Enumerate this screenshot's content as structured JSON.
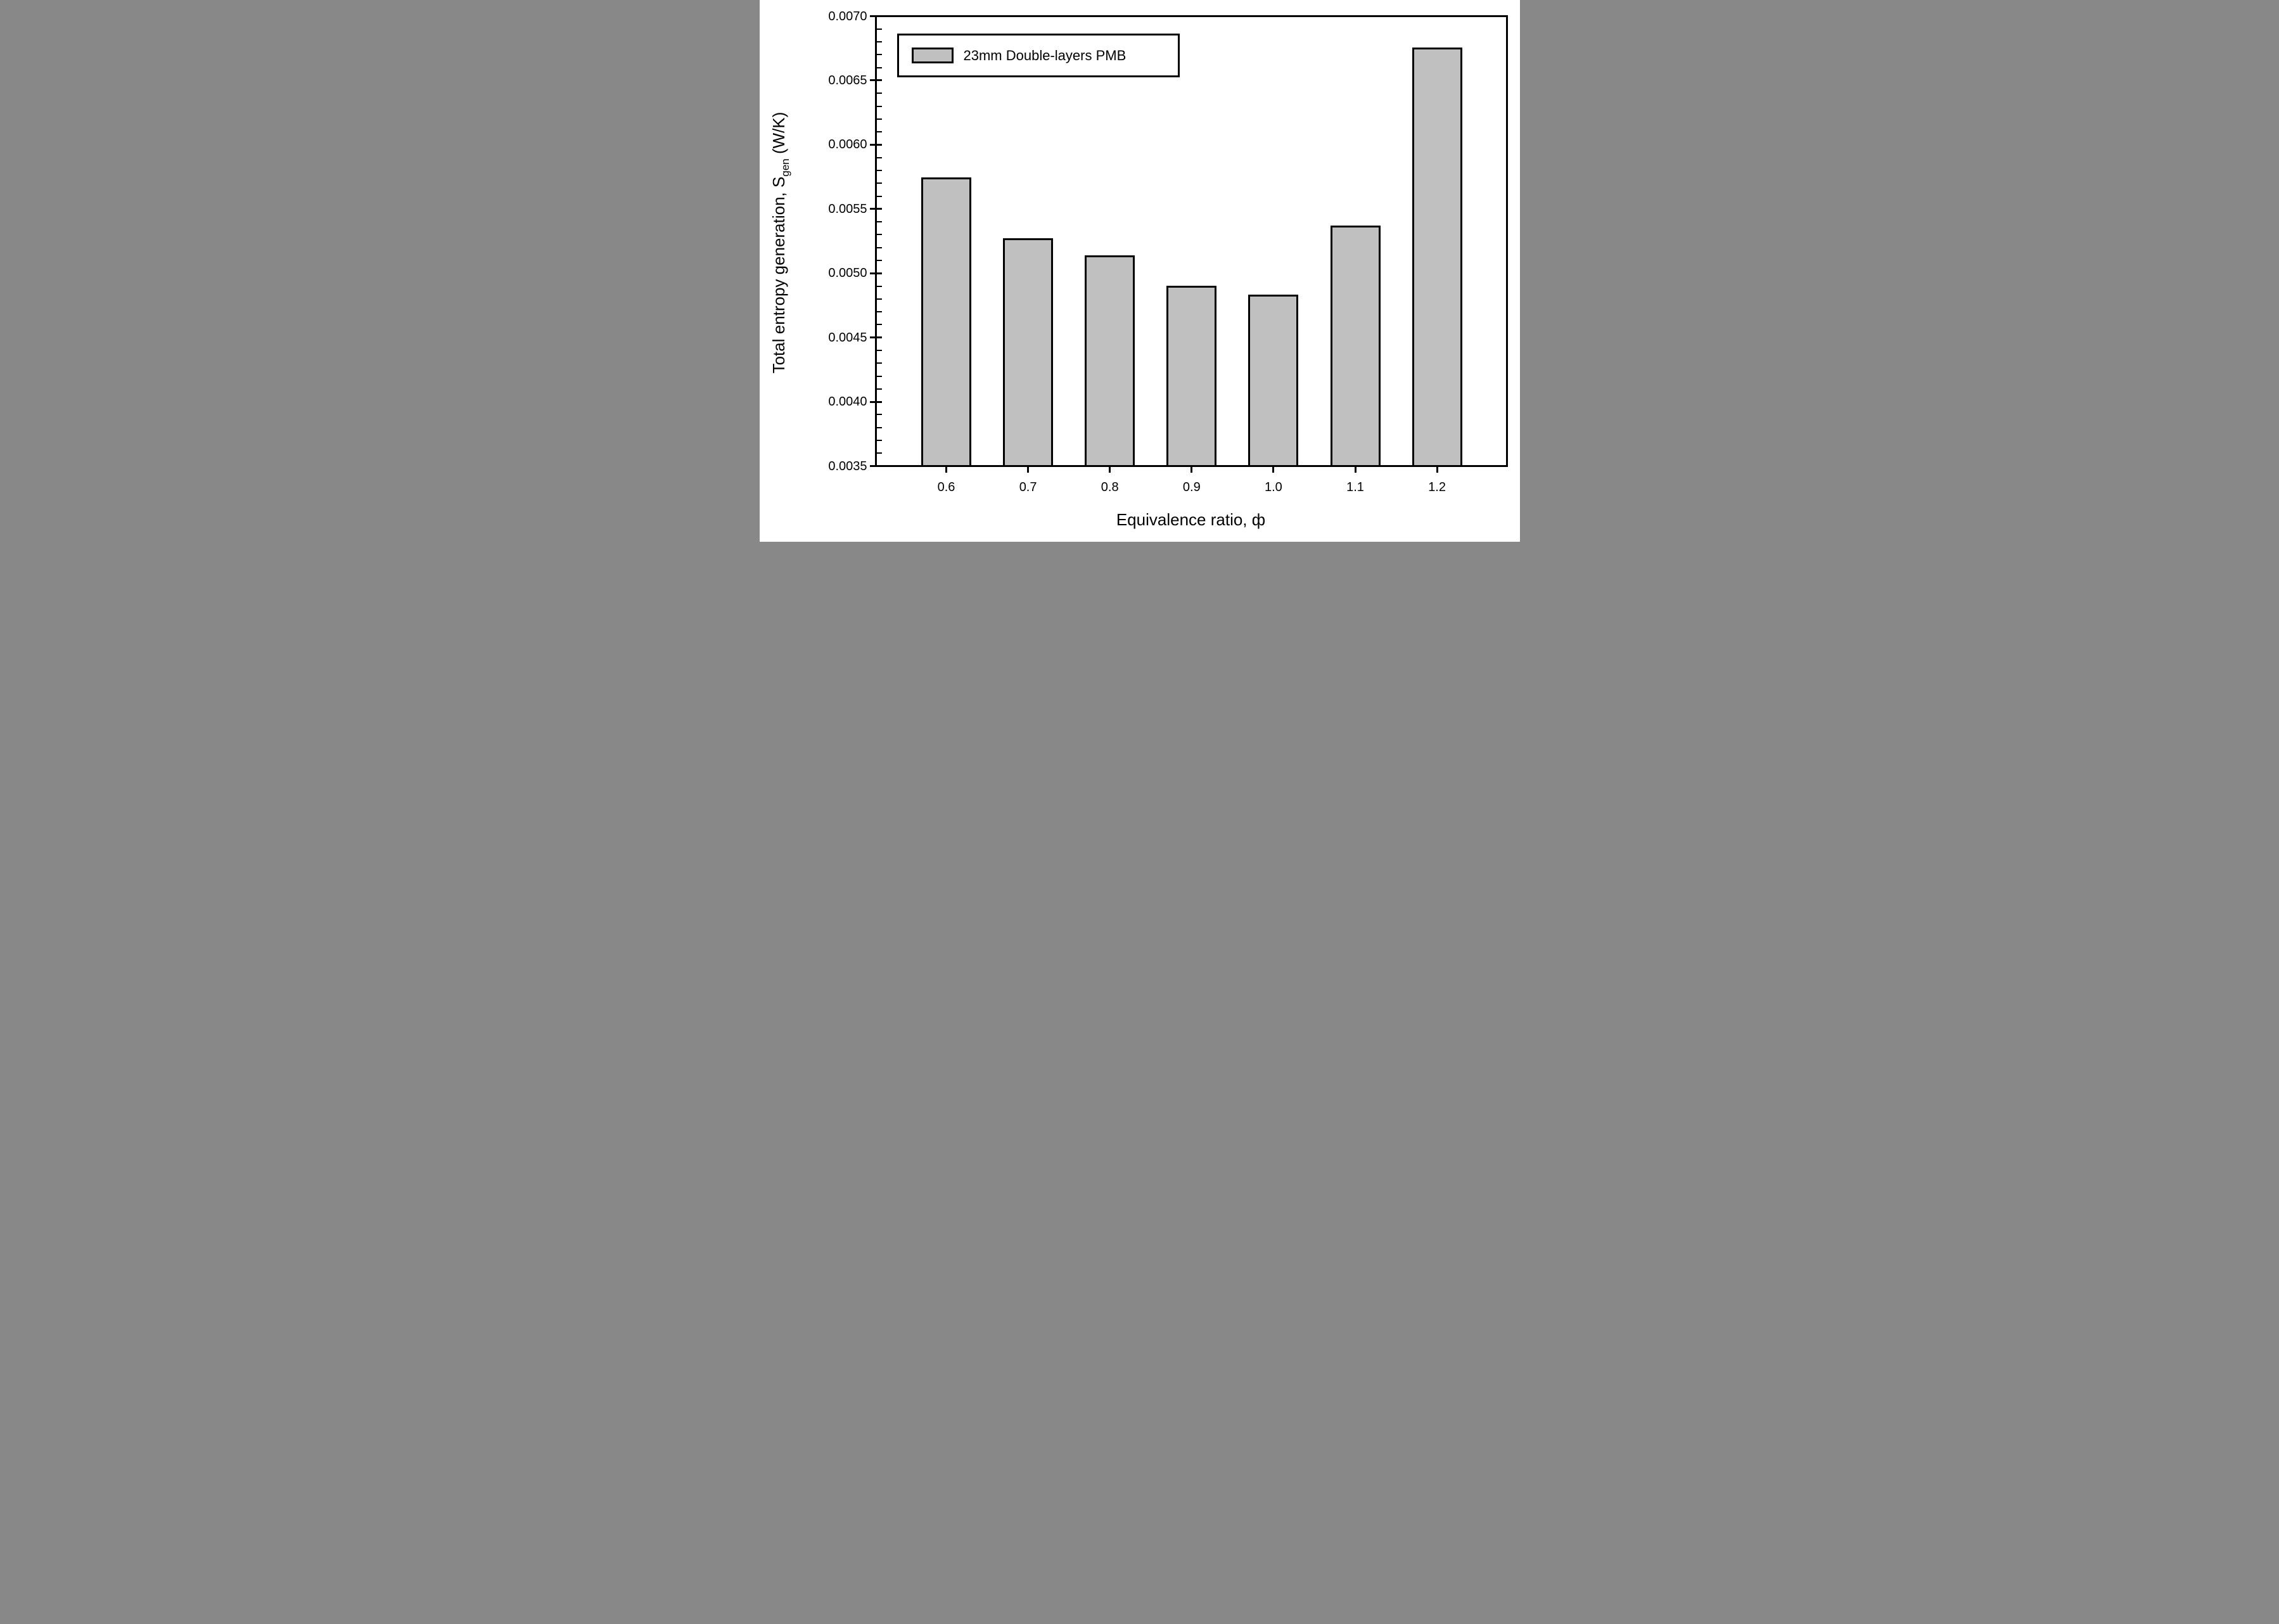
{
  "figure": {
    "background": "#ffffff",
    "bar_fill": "#c0c0c0",
    "line_color": "#000000"
  },
  "legend": {
    "label": "23mm Double-layers PMB",
    "swatch_color": "#c0c0c0",
    "position": "top-left"
  },
  "y_axis": {
    "title_prefix": "Total entropy generation, S",
    "title_sub": "gen",
    "title_suffix": " (W/K)",
    "tick_labels": [
      "0.0035",
      "0.0040",
      "0.0045",
      "0.0050",
      "0.0055",
      "0.0060",
      "0.0065",
      "0.0070"
    ]
  },
  "x_axis": {
    "title": "Equivalence ratio, ф",
    "tick_labels": [
      "0.6",
      "0.7",
      "0.8",
      "0.9",
      "1.0",
      "1.1",
      "1.2"
    ]
  },
  "chart_data": {
    "type": "bar",
    "title": "",
    "xlabel": "Equivalence ratio, ф",
    "ylabel": "Total entropy generation, Sgen (W/K)",
    "categories": [
      "0.6",
      "0.7",
      "0.8",
      "0.9",
      "1.0",
      "1.1",
      "1.2"
    ],
    "series": [
      {
        "name": "23mm Double-layers PMB",
        "values": [
          0.00575,
          0.00527,
          0.00514,
          0.0049,
          0.00483,
          0.00537,
          0.00676
        ]
      }
    ],
    "ylim": [
      0.0035,
      0.007
    ],
    "y_major_step": 0.0005,
    "y_minor_step": 0.0001,
    "grid": false,
    "legend_position": "top-left",
    "bar_fill": "#c0c0c0",
    "bar_border": "#000000"
  }
}
